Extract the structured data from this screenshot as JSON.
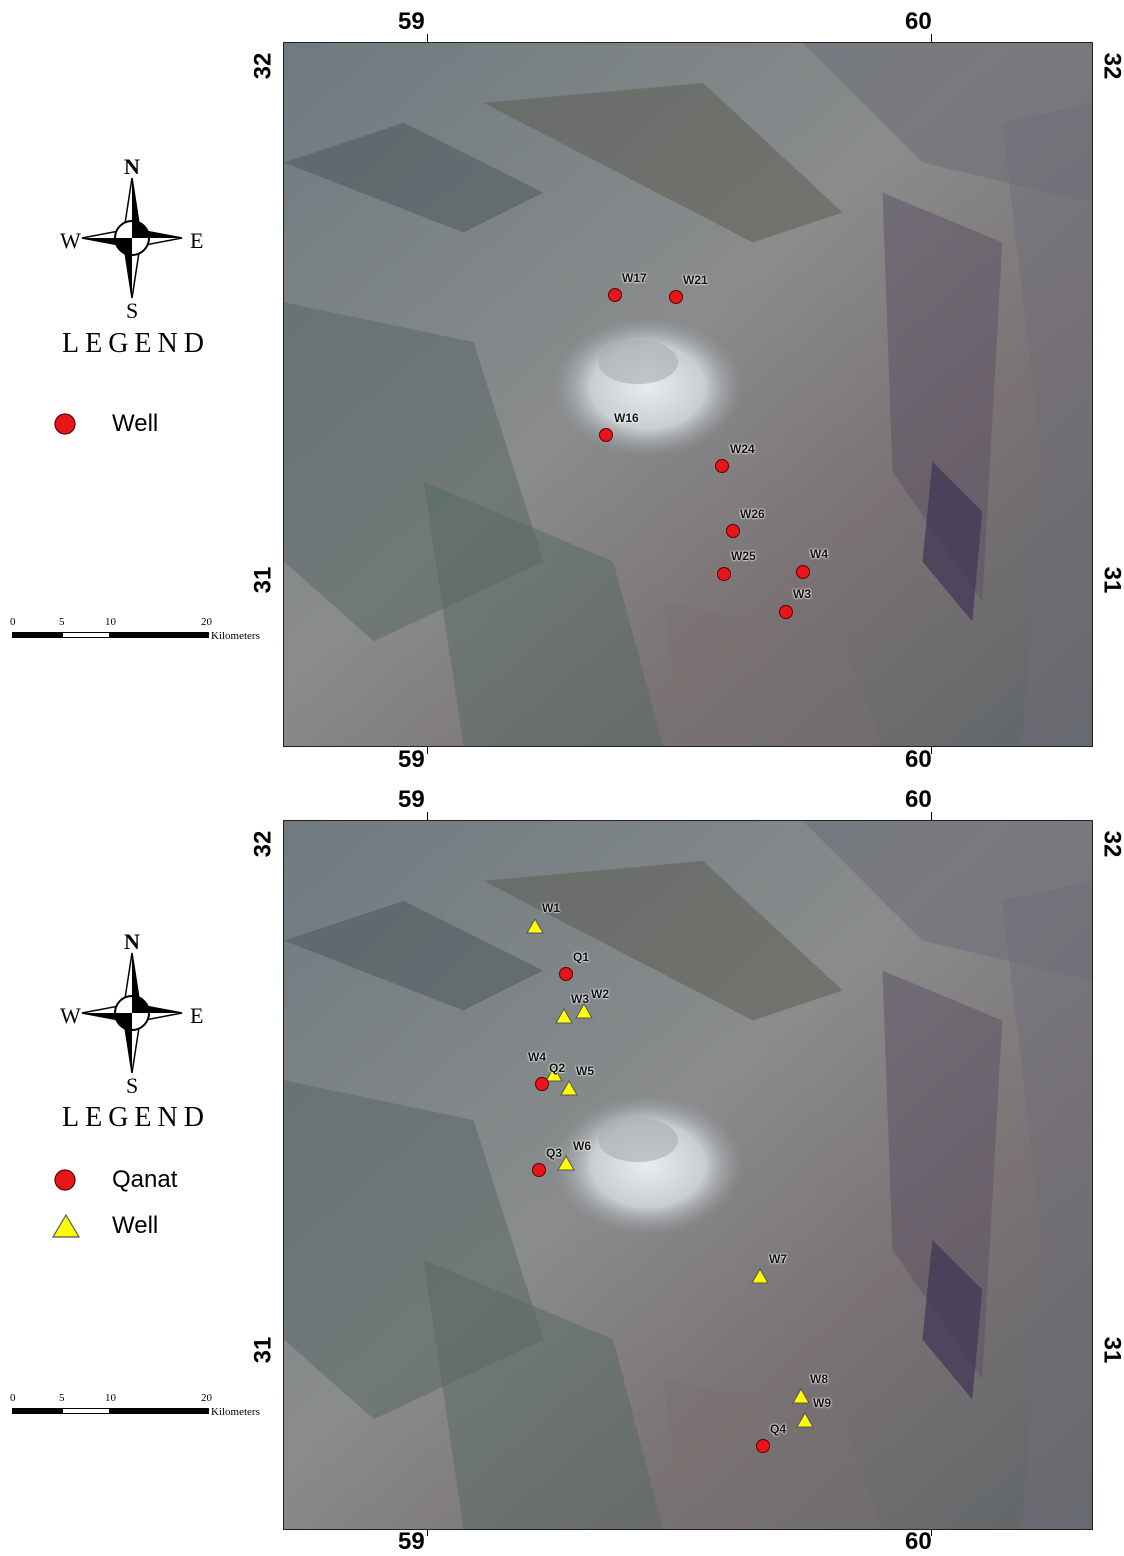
{
  "panel_top": {
    "x_ticks_top": [
      "59",
      "60"
    ],
    "x_ticks_bottom": [
      "59",
      "60"
    ],
    "y_ticks_left": [
      "32",
      "31"
    ],
    "y_ticks_right": [
      "32",
      "31"
    ],
    "compass": {
      "n": "N",
      "s": "S",
      "e": "E",
      "w": "W"
    },
    "legend_title": "LEGEND",
    "legend_items": [
      {
        "label": "Well",
        "symbol": "circle-red"
      }
    ],
    "scale": {
      "labels": [
        "0",
        "5",
        "10",
        "20"
      ],
      "unit": "Kilometers"
    },
    "markers": [
      {
        "label": "W17",
        "symbol": "circle-red"
      },
      {
        "label": "W21",
        "symbol": "circle-red"
      },
      {
        "label": "W16",
        "symbol": "circle-red"
      },
      {
        "label": "W24",
        "symbol": "circle-red"
      },
      {
        "label": "W26",
        "symbol": "circle-red"
      },
      {
        "label": "W25",
        "symbol": "circle-red"
      },
      {
        "label": "W4",
        "symbol": "circle-red"
      },
      {
        "label": "W3",
        "symbol": "circle-red"
      }
    ]
  },
  "panel_bottom": {
    "x_ticks_top": [
      "59",
      "60"
    ],
    "x_ticks_bottom": [
      "59",
      "60"
    ],
    "y_ticks_left": [
      "32",
      "31"
    ],
    "y_ticks_right": [
      "32",
      "31"
    ],
    "compass": {
      "n": "N",
      "s": "S",
      "e": "E",
      "w": "W"
    },
    "legend_title": "LEGEND",
    "legend_items": [
      {
        "label": "Qanat",
        "symbol": "circle-red"
      },
      {
        "label": "Well",
        "symbol": "triangle-yellow"
      }
    ],
    "scale": {
      "labels": [
        "0",
        "5",
        "10",
        "20"
      ],
      "unit": "Kilometers"
    },
    "markers": [
      {
        "label": "W1",
        "symbol": "triangle-yellow"
      },
      {
        "label": "Q1",
        "symbol": "circle-red"
      },
      {
        "label": "W3",
        "symbol": "triangle-yellow"
      },
      {
        "label": "W2",
        "symbol": "triangle-yellow"
      },
      {
        "label": "W4",
        "symbol": "triangle-yellow"
      },
      {
        "label": "Q2",
        "symbol": "circle-red"
      },
      {
        "label": "W5",
        "symbol": "triangle-yellow"
      },
      {
        "label": "Q3",
        "symbol": "circle-red"
      },
      {
        "label": "W6",
        "symbol": "triangle-yellow"
      },
      {
        "label": "W7",
        "symbol": "triangle-yellow"
      },
      {
        "label": "W8",
        "symbol": "triangle-yellow"
      },
      {
        "label": "W9",
        "symbol": "triangle-yellow"
      },
      {
        "label": "Q4",
        "symbol": "circle-red"
      }
    ]
  },
  "colors": {
    "well_red": "#e8161b",
    "well_yellow": "#ffff00",
    "frame": "#222222"
  }
}
